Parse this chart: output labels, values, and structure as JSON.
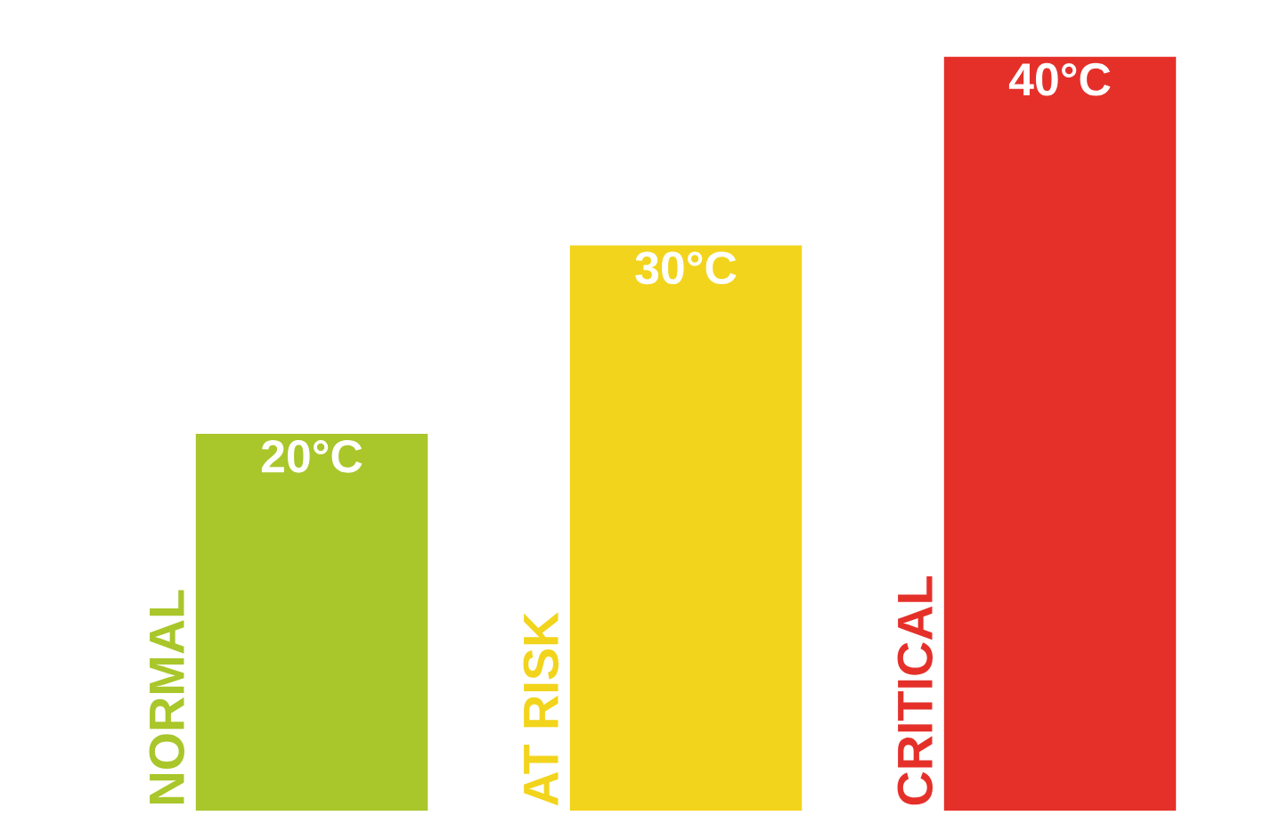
{
  "chart_data": {
    "type": "bar",
    "categories": [
      "NORMAL",
      "AT RISK",
      "CRITICAL"
    ],
    "values": [
      20,
      30,
      40
    ],
    "value_labels": [
      "20°C",
      "30°C",
      "40°C"
    ],
    "colors": [
      "#a9c62a",
      "#f2d41c",
      "#e5302a"
    ]
  }
}
